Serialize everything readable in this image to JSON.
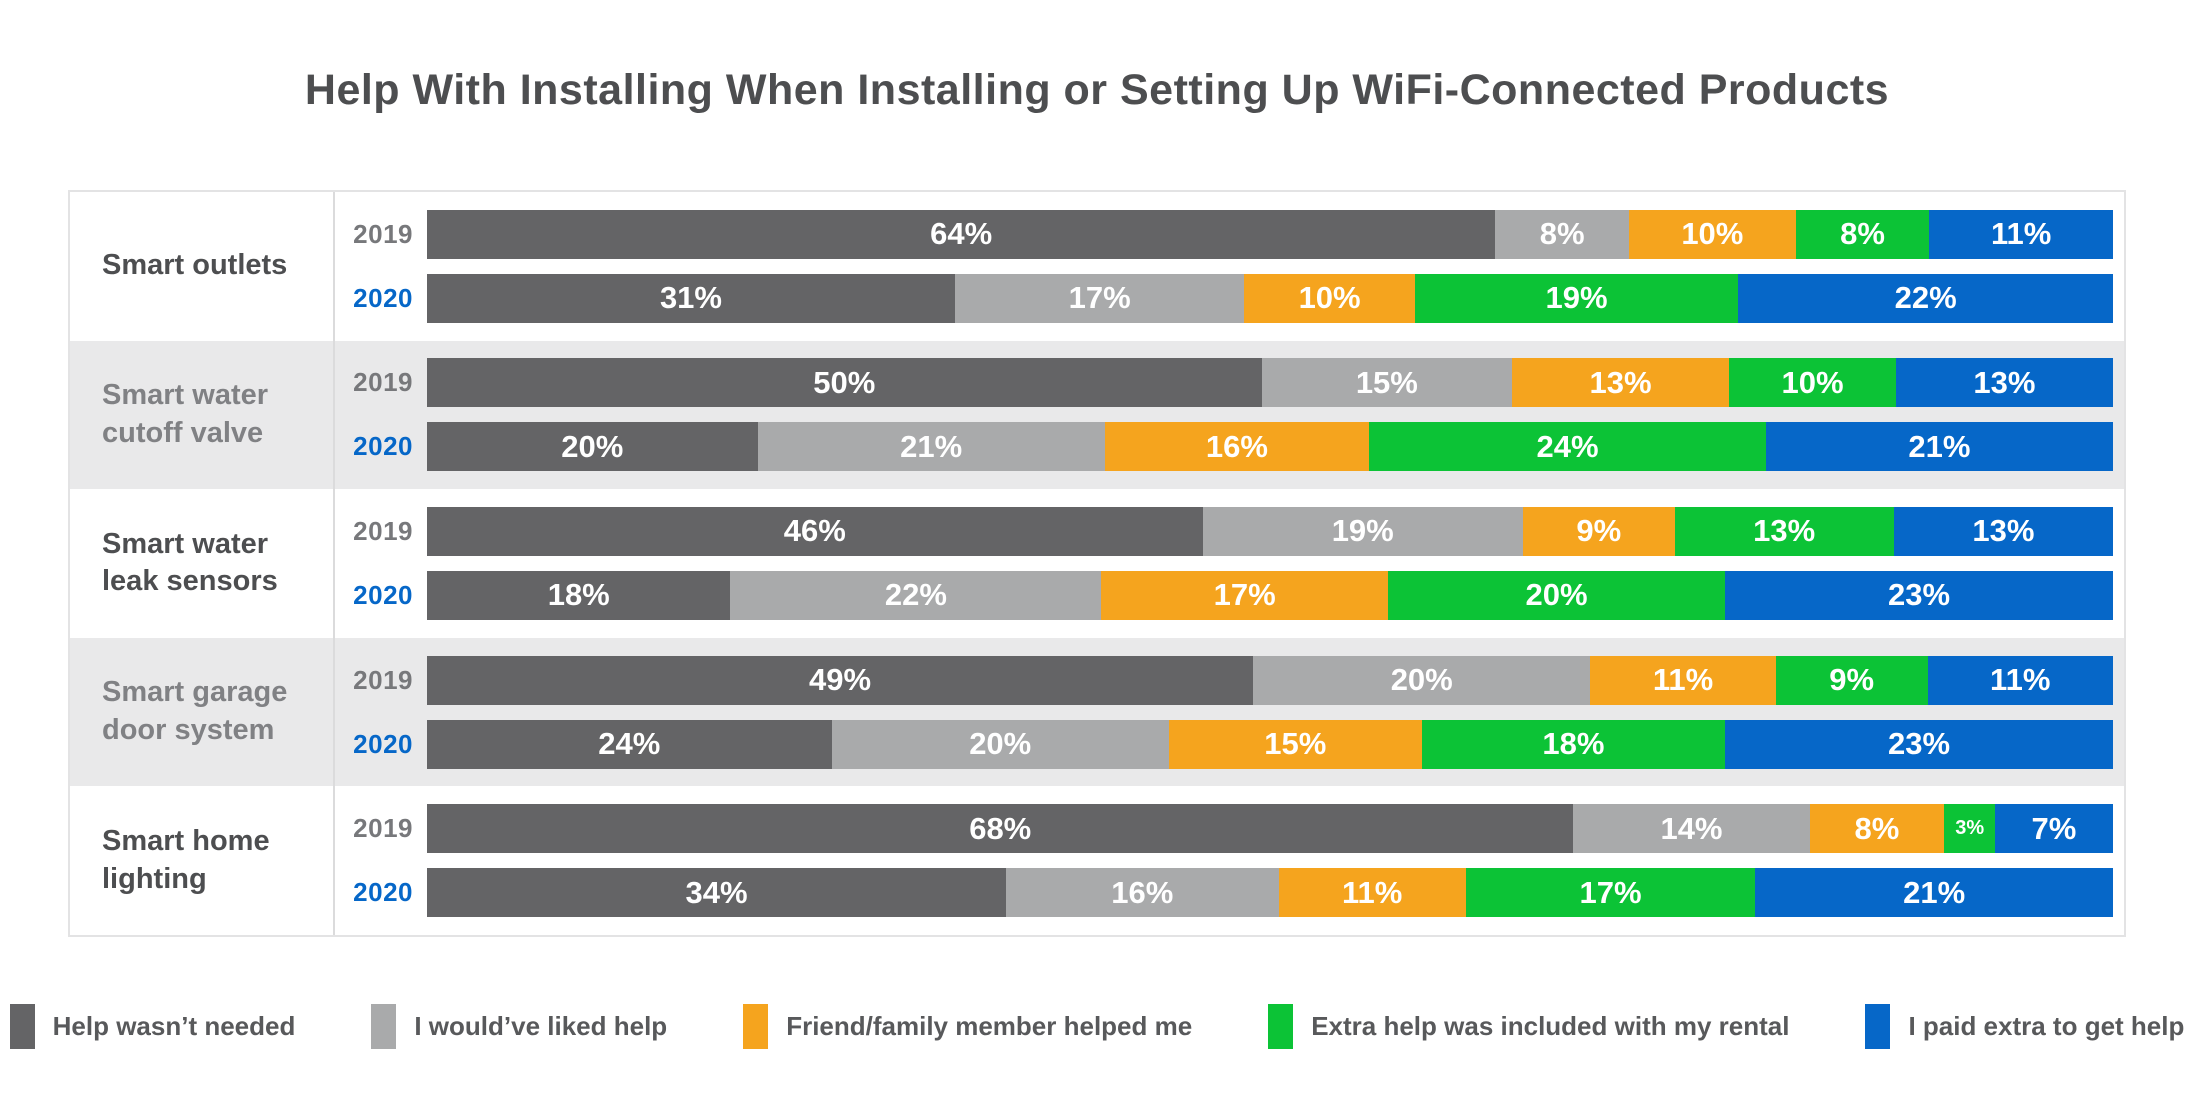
{
  "title": "Help With Installing When Installing or Setting Up WiFi-Connected Products",
  "colors": {
    "title_text": "#4d4e50",
    "row_alt_background": "#e9e9ea",
    "frame_border": "#e3e3e4",
    "year_2019_label": "#77787b",
    "year_2020_label": "#0667c8",
    "segment_label_text": "#ffffff"
  },
  "legend": [
    {
      "label": "Help wasn’t needed",
      "color": "#646466"
    },
    {
      "label": "I would’ve liked help",
      "color": "#a9aaab"
    },
    {
      "label": "Friend/family member helped me",
      "color": "#f5a41e"
    },
    {
      "label": "Extra help was included with my rental",
      "color": "#0cc336"
    },
    {
      "label": "I paid extra to get help",
      "color": "#0667c8"
    }
  ],
  "chart_data": {
    "type": "bar",
    "orientation": "horizontal-stacked",
    "title": "Help With Installing When Installing or Setting Up WiFi-Connected Products",
    "value_format": "percent",
    "series_labels": [
      "Help wasn’t needed",
      "I would’ve liked help",
      "Friend/family member helped me",
      "Extra help was included with my rental",
      "I paid extra to get help"
    ],
    "series_colors": [
      "#646466",
      "#a9aaab",
      "#f5a41e",
      "#0cc336",
      "#0667c8"
    ],
    "categories": [
      "Smart outlets",
      "Smart water cutoff valve",
      "Smart water leak sensors",
      "Smart garage door system",
      "Smart home lighting"
    ],
    "rows": [
      {
        "category": "Smart outlets",
        "bars": [
          {
            "year": "2019",
            "values": [
              64,
              8,
              10,
              8,
              11
            ]
          },
          {
            "year": "2020",
            "values": [
              31,
              17,
              10,
              19,
              22
            ]
          }
        ]
      },
      {
        "category": "Smart water cutoff valve",
        "bars": [
          {
            "year": "2019",
            "values": [
              50,
              15,
              13,
              10,
              13
            ]
          },
          {
            "year": "2020",
            "values": [
              20,
              21,
              16,
              24,
              21
            ]
          }
        ]
      },
      {
        "category": "Smart water leak sensors",
        "bars": [
          {
            "year": "2019",
            "values": [
              46,
              19,
              9,
              13,
              13
            ]
          },
          {
            "year": "2020",
            "values": [
              18,
              22,
              17,
              20,
              23
            ]
          }
        ]
      },
      {
        "category": "Smart garage door system",
        "bars": [
          {
            "year": "2019",
            "values": [
              49,
              20,
              11,
              9,
              11
            ]
          },
          {
            "year": "2020",
            "values": [
              24,
              20,
              15,
              18,
              23
            ]
          }
        ]
      },
      {
        "category": "Smart home lighting",
        "bars": [
          {
            "year": "2019",
            "values": [
              68,
              14,
              8,
              3,
              7
            ]
          },
          {
            "year": "2020",
            "values": [
              34,
              16,
              11,
              17,
              21
            ]
          }
        ]
      }
    ]
  }
}
